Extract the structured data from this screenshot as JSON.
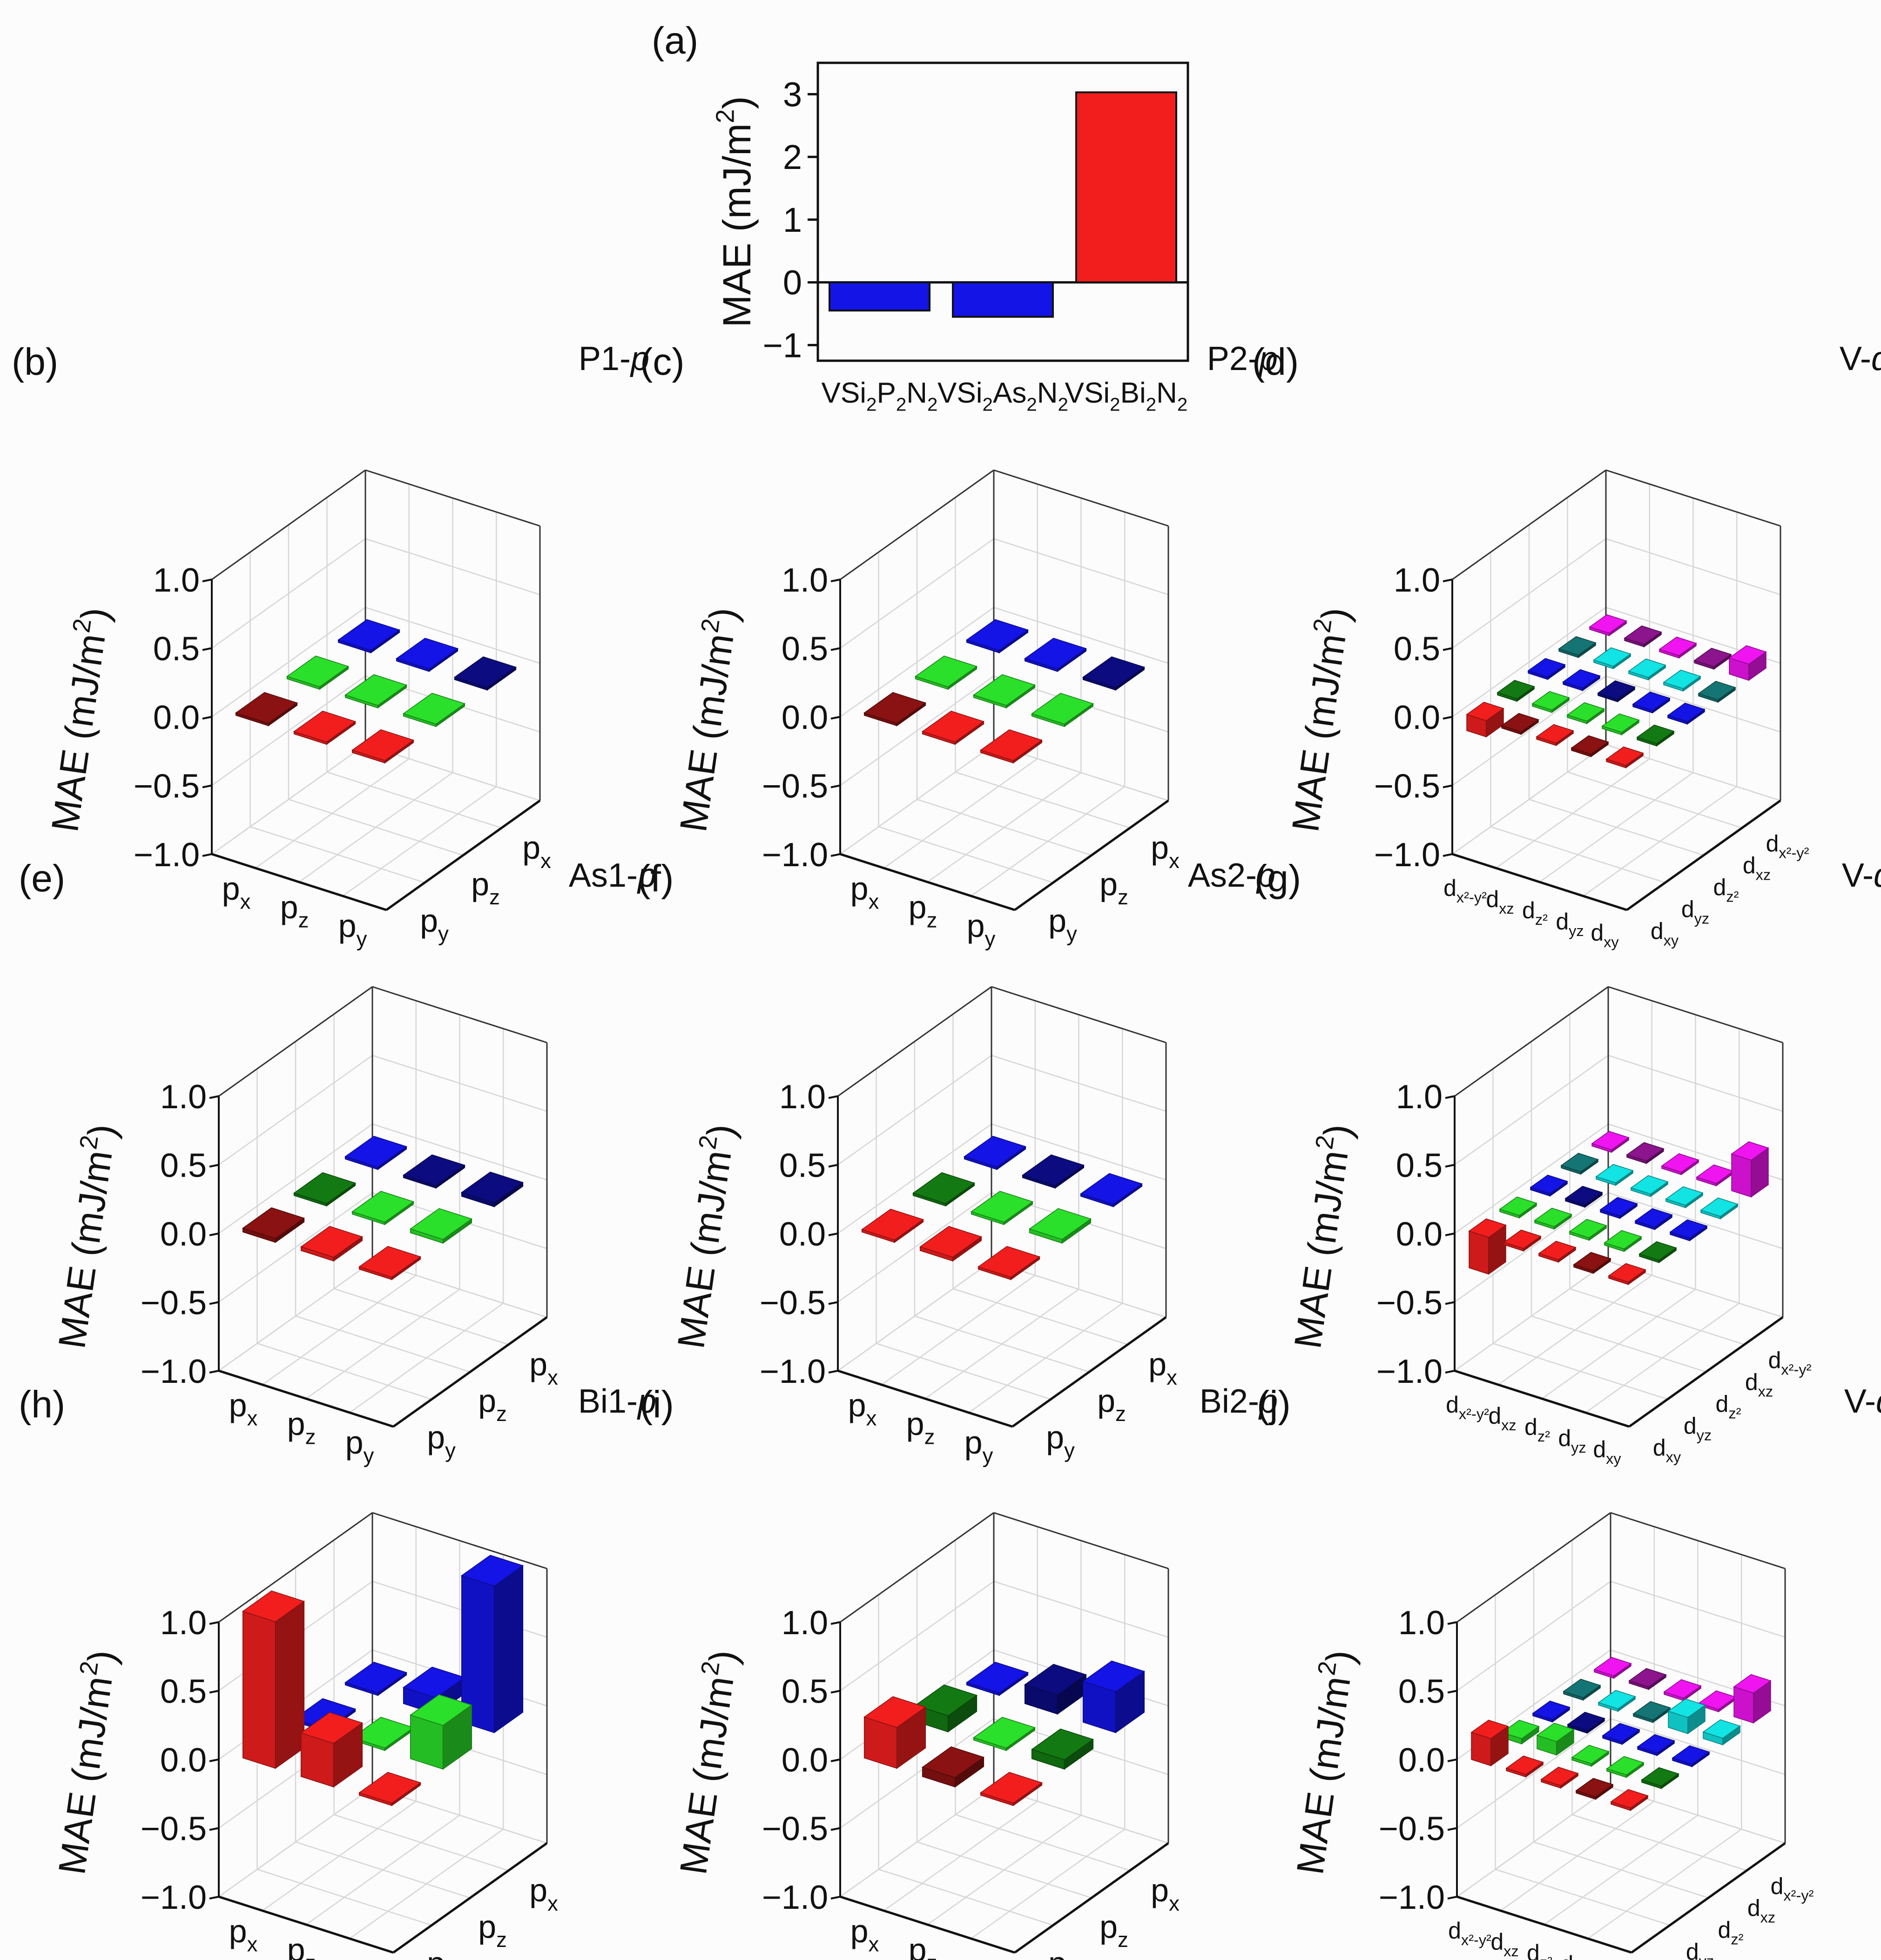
{
  "colors": {
    "red": "#f21e1e",
    "dark_red": "#8a1212",
    "green": "#2ae02a",
    "dark_green": "#137a13",
    "blue": "#1414e6",
    "navy": "#0c0c80",
    "cyan": "#12e3e3",
    "teal": "#157575",
    "magenta": "#f014f0",
    "purple": "#8c148c",
    "grid": "#d6d6d6"
  },
  "chart_data": [
    {
      "label": "(a)",
      "type": "bar",
      "categories": [
        "VSi2P2N2",
        "VSi2As2N2",
        "VSi2Bi2N2"
      ],
      "values": [
        -0.45,
        -0.55,
        3.03
      ],
      "colors": [
        "blue",
        "blue",
        "red"
      ],
      "ylabel": "MAE (mJ/m2)",
      "ylim": [
        -1.25,
        3.5
      ],
      "yticks": [
        "-1",
        "0",
        "1",
        "2",
        "3"
      ]
    },
    {
      "label": "(b)",
      "type": "bar3d",
      "title": "P1-p",
      "kind": "p",
      "cells": [
        {
          "i": 0,
          "j": 0,
          "v": 0,
          "c": "dark_red"
        },
        {
          "i": 1,
          "j": 0,
          "v": 0,
          "c": "red"
        },
        {
          "i": 2,
          "j": 0,
          "v": 0,
          "c": "red"
        },
        {
          "i": 0,
          "j": 1,
          "v": 0,
          "c": "green"
        },
        {
          "i": 1,
          "j": 1,
          "v": 0,
          "c": "green"
        },
        {
          "i": 2,
          "j": 1,
          "v": 0,
          "c": "green"
        },
        {
          "i": 0,
          "j": 2,
          "v": 0,
          "c": "blue"
        },
        {
          "i": 1,
          "j": 2,
          "v": 0,
          "c": "blue"
        },
        {
          "i": 2,
          "j": 2,
          "v": 0,
          "c": "navy"
        }
      ]
    },
    {
      "label": "(c)",
      "type": "bar3d",
      "title": "P2-p",
      "kind": "p",
      "cells": [
        {
          "i": 0,
          "j": 0,
          "v": 0,
          "c": "dark_red"
        },
        {
          "i": 1,
          "j": 0,
          "v": 0,
          "c": "red"
        },
        {
          "i": 2,
          "j": 0,
          "v": 0,
          "c": "red"
        },
        {
          "i": 0,
          "j": 1,
          "v": 0,
          "c": "green"
        },
        {
          "i": 1,
          "j": 1,
          "v": 0,
          "c": "green"
        },
        {
          "i": 2,
          "j": 1,
          "v": 0,
          "c": "green"
        },
        {
          "i": 0,
          "j": 2,
          "v": 0,
          "c": "blue"
        },
        {
          "i": 1,
          "j": 2,
          "v": 0,
          "c": "blue"
        },
        {
          "i": 2,
          "j": 2,
          "v": 0,
          "c": "navy"
        }
      ]
    },
    {
      "label": "(d)",
      "type": "bar3d",
      "title": "V-d",
      "kind": "d",
      "cells": [
        {
          "i": 0,
          "j": 0,
          "v": -0.1,
          "c": "red"
        },
        {
          "i": 1,
          "j": 0,
          "v": 0,
          "c": "dark_red"
        },
        {
          "i": 2,
          "j": 0,
          "v": 0,
          "c": "red"
        },
        {
          "i": 3,
          "j": 0,
          "v": 0,
          "c": "dark_red"
        },
        {
          "i": 4,
          "j": 0,
          "v": 0,
          "c": "red"
        },
        {
          "i": 0,
          "j": 1,
          "v": 0,
          "c": "dark_green"
        },
        {
          "i": 1,
          "j": 1,
          "v": 0,
          "c": "green"
        },
        {
          "i": 2,
          "j": 1,
          "v": 0,
          "c": "green"
        },
        {
          "i": 3,
          "j": 1,
          "v": 0,
          "c": "green"
        },
        {
          "i": 4,
          "j": 1,
          "v": 0,
          "c": "dark_green"
        },
        {
          "i": 0,
          "j": 2,
          "v": 0,
          "c": "blue"
        },
        {
          "i": 1,
          "j": 2,
          "v": 0,
          "c": "blue"
        },
        {
          "i": 2,
          "j": 2,
          "v": 0,
          "c": "navy"
        },
        {
          "i": 3,
          "j": 2,
          "v": 0,
          "c": "blue"
        },
        {
          "i": 4,
          "j": 2,
          "v": 0,
          "c": "blue"
        },
        {
          "i": 0,
          "j": 3,
          "v": 0,
          "c": "teal"
        },
        {
          "i": 1,
          "j": 3,
          "v": 0,
          "c": "cyan"
        },
        {
          "i": 2,
          "j": 3,
          "v": 0,
          "c": "cyan"
        },
        {
          "i": 3,
          "j": 3,
          "v": 0,
          "c": "cyan"
        },
        {
          "i": 4,
          "j": 3,
          "v": 0,
          "c": "teal"
        },
        {
          "i": 0,
          "j": 4,
          "v": 0,
          "c": "magenta"
        },
        {
          "i": 1,
          "j": 4,
          "v": 0,
          "c": "purple"
        },
        {
          "i": 2,
          "j": 4,
          "v": 0,
          "c": "magenta"
        },
        {
          "i": 3,
          "j": 4,
          "v": 0,
          "c": "purple"
        },
        {
          "i": 4,
          "j": 4,
          "v": 0.1,
          "c": "magenta"
        }
      ]
    },
    {
      "label": "(e)",
      "type": "bar3d",
      "title": "As1-p",
      "kind": "p",
      "cells": [
        {
          "i": 0,
          "j": 0,
          "v": 0.01,
          "c": "dark_red"
        },
        {
          "i": 1,
          "j": 0,
          "v": 0.01,
          "c": "red"
        },
        {
          "i": 2,
          "j": 0,
          "v": 0,
          "c": "red"
        },
        {
          "i": 0,
          "j": 1,
          "v": 0,
          "c": "dark_green"
        },
        {
          "i": 1,
          "j": 1,
          "v": 0,
          "c": "green"
        },
        {
          "i": 2,
          "j": 1,
          "v": 0.01,
          "c": "green"
        },
        {
          "i": 0,
          "j": 2,
          "v": 0,
          "c": "blue"
        },
        {
          "i": 1,
          "j": 2,
          "v": 0,
          "c": "navy"
        },
        {
          "i": 2,
          "j": 2,
          "v": 0.01,
          "c": "navy"
        }
      ]
    },
    {
      "label": "(f)",
      "type": "bar3d",
      "title": "As2-p",
      "kind": "p",
      "cells": [
        {
          "i": 0,
          "j": 0,
          "v": 0,
          "c": "red"
        },
        {
          "i": 1,
          "j": 0,
          "v": 0.01,
          "c": "red"
        },
        {
          "i": 2,
          "j": 0,
          "v": 0,
          "c": "red"
        },
        {
          "i": 0,
          "j": 1,
          "v": 0,
          "c": "dark_green"
        },
        {
          "i": 1,
          "j": 1,
          "v": 0,
          "c": "green"
        },
        {
          "i": 2,
          "j": 1,
          "v": 0.01,
          "c": "green"
        },
        {
          "i": 0,
          "j": 2,
          "v": 0,
          "c": "blue"
        },
        {
          "i": 1,
          "j": 2,
          "v": 0,
          "c": "navy"
        },
        {
          "i": 2,
          "j": 2,
          "v": 0,
          "c": "blue"
        }
      ]
    },
    {
      "label": "(g)",
      "type": "bar3d",
      "title": "V-d",
      "kind": "d",
      "cells": [
        {
          "i": 0,
          "j": 0,
          "v": -0.25,
          "c": "red"
        },
        {
          "i": 1,
          "j": 0,
          "v": 0,
          "c": "red"
        },
        {
          "i": 2,
          "j": 0,
          "v": 0,
          "c": "red"
        },
        {
          "i": 3,
          "j": 0,
          "v": 0,
          "c": "dark_red"
        },
        {
          "i": 4,
          "j": 0,
          "v": 0,
          "c": "red"
        },
        {
          "i": 0,
          "j": 1,
          "v": 0,
          "c": "green"
        },
        {
          "i": 1,
          "j": 1,
          "v": 0,
          "c": "green"
        },
        {
          "i": 2,
          "j": 1,
          "v": 0,
          "c": "green"
        },
        {
          "i": 3,
          "j": 1,
          "v": 0,
          "c": "green"
        },
        {
          "i": 4,
          "j": 1,
          "v": 0,
          "c": "dark_green"
        },
        {
          "i": 0,
          "j": 2,
          "v": 0,
          "c": "blue"
        },
        {
          "i": 1,
          "j": 2,
          "v": 0,
          "c": "navy"
        },
        {
          "i": 2,
          "j": 2,
          "v": 0,
          "c": "blue"
        },
        {
          "i": 3,
          "j": 2,
          "v": 0,
          "c": "blue"
        },
        {
          "i": 4,
          "j": 2,
          "v": 0,
          "c": "blue"
        },
        {
          "i": 0,
          "j": 3,
          "v": 0,
          "c": "teal"
        },
        {
          "i": 1,
          "j": 3,
          "v": 0,
          "c": "cyan"
        },
        {
          "i": 2,
          "j": 3,
          "v": 0,
          "c": "cyan"
        },
        {
          "i": 3,
          "j": 3,
          "v": 0,
          "c": "cyan"
        },
        {
          "i": 4,
          "j": 3,
          "v": 0,
          "c": "cyan"
        },
        {
          "i": 0,
          "j": 4,
          "v": 0,
          "c": "magenta"
        },
        {
          "i": 1,
          "j": 4,
          "v": 0,
          "c": "purple"
        },
        {
          "i": 2,
          "j": 4,
          "v": 0,
          "c": "magenta"
        },
        {
          "i": 3,
          "j": 4,
          "v": 0,
          "c": "magenta"
        },
        {
          "i": 4,
          "j": 4,
          "v": 0.25,
          "c": "magenta"
        }
      ]
    },
    {
      "label": "(h)",
      "type": "bar3d",
      "title": "Bi1-p",
      "kind": "p",
      "cells": [
        {
          "i": 0,
          "j": 0,
          "v": 1.05,
          "c": "red"
        },
        {
          "i": 1,
          "j": 0,
          "v": 0.3,
          "c": "red"
        },
        {
          "i": 2,
          "j": 0,
          "v": 0,
          "c": "red"
        },
        {
          "i": 0,
          "j": 1,
          "v": 0,
          "c": "blue"
        },
        {
          "i": 1,
          "j": 1,
          "v": 0,
          "c": "green"
        },
        {
          "i": 2,
          "j": 1,
          "v": 0.3,
          "c": "green"
        },
        {
          "i": 0,
          "j": 2,
          "v": 0,
          "c": "blue"
        },
        {
          "i": 1,
          "j": 2,
          "v": 0.1,
          "c": "blue"
        },
        {
          "i": 2,
          "j": 2,
          "v": 1.05,
          "c": "blue"
        }
      ]
    },
    {
      "label": "(i)",
      "type": "bar3d",
      "title": "Bi2-p",
      "kind": "p",
      "cells": [
        {
          "i": 0,
          "j": 0,
          "v": 0.28,
          "c": "red"
        },
        {
          "i": 1,
          "j": 0,
          "v": 0.05,
          "c": "dark_red"
        },
        {
          "i": 2,
          "j": 0,
          "v": 0,
          "c": "red"
        },
        {
          "i": 0,
          "j": 1,
          "v": 0.1,
          "c": "dark_green"
        },
        {
          "i": 1,
          "j": 1,
          "v": 0,
          "c": "green"
        },
        {
          "i": 2,
          "j": 1,
          "v": 0.05,
          "c": "dark_green"
        },
        {
          "i": 0,
          "j": 2,
          "v": 0,
          "c": "blue"
        },
        {
          "i": 1,
          "j": 2,
          "v": 0.12,
          "c": "navy"
        },
        {
          "i": 2,
          "j": 2,
          "v": 0.28,
          "c": "blue"
        }
      ]
    },
    {
      "label": "(j)",
      "type": "bar3d",
      "title": "V-d",
      "kind": "d",
      "cells": [
        {
          "i": 0,
          "j": 0,
          "v": 0.18,
          "c": "red"
        },
        {
          "i": 1,
          "j": 0,
          "v": 0,
          "c": "red"
        },
        {
          "i": 2,
          "j": 0,
          "v": 0,
          "c": "red"
        },
        {
          "i": 3,
          "j": 0,
          "v": 0,
          "c": "dark_red"
        },
        {
          "i": 4,
          "j": 0,
          "v": 0,
          "c": "red"
        },
        {
          "i": 0,
          "j": 1,
          "v": 0.02,
          "c": "green"
        },
        {
          "i": 1,
          "j": 1,
          "v": 0.08,
          "c": "green"
        },
        {
          "i": 2,
          "j": 1,
          "v": 0,
          "c": "green"
        },
        {
          "i": 3,
          "j": 1,
          "v": 0,
          "c": "green"
        },
        {
          "i": 4,
          "j": 1,
          "v": 0,
          "c": "dark_green"
        },
        {
          "i": 0,
          "j": 2,
          "v": 0,
          "c": "blue"
        },
        {
          "i": 1,
          "j": 2,
          "v": 0,
          "c": "navy"
        },
        {
          "i": 2,
          "j": 2,
          "v": 0,
          "c": "blue"
        },
        {
          "i": 3,
          "j": 2,
          "v": 0,
          "c": "blue"
        },
        {
          "i": 4,
          "j": 2,
          "v": 0,
          "c": "blue"
        },
        {
          "i": 0,
          "j": 3,
          "v": 0,
          "c": "teal"
        },
        {
          "i": 1,
          "j": 3,
          "v": 0,
          "c": "cyan"
        },
        {
          "i": 2,
          "j": 3,
          "v": 0,
          "c": "teal"
        },
        {
          "i": 3,
          "j": 3,
          "v": 0.1,
          "c": "cyan"
        },
        {
          "i": 4,
          "j": 3,
          "v": 0.03,
          "c": "cyan"
        },
        {
          "i": 0,
          "j": 4,
          "v": 0,
          "c": "magenta"
        },
        {
          "i": 1,
          "j": 4,
          "v": 0,
          "c": "purple"
        },
        {
          "i": 2,
          "j": 4,
          "v": 0,
          "c": "magenta"
        },
        {
          "i": 3,
          "j": 4,
          "v": 0,
          "c": "magenta"
        },
        {
          "i": 4,
          "j": 4,
          "v": 0.2,
          "c": "magenta"
        }
      ]
    }
  ],
  "axis3d": {
    "ylabel": "MAE (mJ/m2)",
    "zticks": [
      "1.0",
      "0.5",
      "0.0",
      "-0.5",
      "-1.0"
    ],
    "p_front_labels": [
      "px",
      "pz",
      "py"
    ],
    "p_side_labels": [
      "py",
      "pz",
      "px"
    ],
    "d_front_labels": [
      "dx2-y2",
      "dxz",
      "dz2",
      "dyz",
      "dxy"
    ],
    "d_side_labels": [
      "dxy",
      "dyz",
      "dz2",
      "dxz",
      "dx2-y2"
    ]
  }
}
